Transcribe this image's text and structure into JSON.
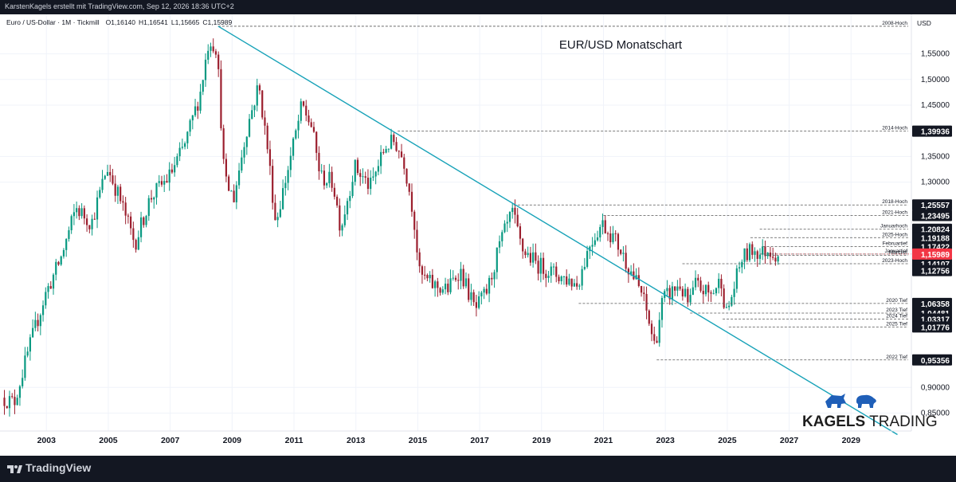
{
  "header": {
    "attribution": "KarstenKagels erstellt mit TradingView.com, Sep 12, 2026 18:36 UTC+2"
  },
  "footer": {
    "brand": "TradingView",
    "logo_icon": "tradingview-logo-icon"
  },
  "chart_data": {
    "type": "candlestick",
    "title": "EUR/USD Monatschart",
    "symbol_line": "Euro / US-Dollar · 1M · Tickmill",
    "ohlc_readout": {
      "O": "1,16140",
      "H": "1,16541",
      "L": "1,15665",
      "C": "1,15989"
    },
    "currency_label": "USD",
    "xlim": [
      2001.5,
      2030.95
    ],
    "ylim": [
      0.815,
      1.627
    ],
    "x_ticks": [
      "2003",
      "2005",
      "2007",
      "2009",
      "2011",
      "2013",
      "2015",
      "2017",
      "2019",
      "2021",
      "2023",
      "2025",
      "2027",
      "2029"
    ],
    "y_ticks": [
      "1,55000",
      "1,50000",
      "1,45000",
      "1,35000",
      "1,30000",
      "0,90000",
      "0,85000"
    ],
    "price_anchors": [
      [
        2001.6,
        0.88
      ],
      [
        2002.0,
        0.87
      ],
      [
        2002.5,
        0.98
      ],
      [
        2003.0,
        1.08
      ],
      [
        2003.5,
        1.15
      ],
      [
        2004.0,
        1.25
      ],
      [
        2004.5,
        1.22
      ],
      [
        2005.0,
        1.33
      ],
      [
        2005.4,
        1.27
      ],
      [
        2005.9,
        1.18
      ],
      [
        2006.4,
        1.27
      ],
      [
        2007.0,
        1.31
      ],
      [
        2007.5,
        1.37
      ],
      [
        2008.0,
        1.47
      ],
      [
        2008.3,
        1.58
      ],
      [
        2008.55,
        1.56
      ],
      [
        2008.8,
        1.3
      ],
      [
        2009.1,
        1.27
      ],
      [
        2009.5,
        1.4
      ],
      [
        2009.9,
        1.49
      ],
      [
        2010.2,
        1.36
      ],
      [
        2010.45,
        1.22
      ],
      [
        2010.9,
        1.34
      ],
      [
        2011.3,
        1.45
      ],
      [
        2011.6,
        1.41
      ],
      [
        2011.9,
        1.31
      ],
      [
        2012.3,
        1.3
      ],
      [
        2012.55,
        1.21
      ],
      [
        2013.0,
        1.33
      ],
      [
        2013.5,
        1.29
      ],
      [
        2014.0,
        1.37
      ],
      [
        2014.3,
        1.38
      ],
      [
        2014.6,
        1.34
      ],
      [
        2014.9,
        1.24
      ],
      [
        2015.1,
        1.12
      ],
      [
        2015.5,
        1.1
      ],
      [
        2016.0,
        1.09
      ],
      [
        2016.4,
        1.13
      ],
      [
        2016.9,
        1.05
      ],
      [
        2017.3,
        1.09
      ],
      [
        2017.7,
        1.18
      ],
      [
        2018.1,
        1.24
      ],
      [
        2018.4,
        1.17
      ],
      [
        2018.9,
        1.14
      ],
      [
        2019.5,
        1.12
      ],
      [
        2019.9,
        1.11
      ],
      [
        2020.2,
        1.1
      ],
      [
        2020.6,
        1.18
      ],
      [
        2021.0,
        1.22
      ],
      [
        2021.4,
        1.19
      ],
      [
        2021.9,
        1.13
      ],
      [
        2022.3,
        1.08
      ],
      [
        2022.7,
        0.98
      ],
      [
        2022.95,
        1.07
      ],
      [
        2023.5,
        1.1
      ],
      [
        2023.8,
        1.06
      ],
      [
        2024.0,
        1.1
      ],
      [
        2024.5,
        1.08
      ],
      [
        2024.85,
        1.11
      ],
      [
        2025.0,
        1.04
      ],
      [
        2025.2,
        1.08
      ],
      [
        2025.5,
        1.15
      ],
      [
        2025.9,
        1.17
      ],
      [
        2026.1,
        1.16
      ],
      [
        2026.4,
        1.17
      ],
      [
        2026.6,
        1.15989
      ]
    ],
    "trend_line": {
      "from": [
        2008.55,
        1.6038
      ],
      "to": [
        2030.5,
        0.808
      ],
      "color": "#17a2b8"
    },
    "levels": [
      {
        "label": "2008-Hoch",
        "value": 1.6038,
        "price_label": "",
        "x_start": 2008.55
      },
      {
        "label": "2014-Hoch",
        "value": 1.39936,
        "price_label": "1,39936",
        "x_start": 2014.35
      },
      {
        "label": "",
        "value": 1.25557,
        "price_label": "1,25557",
        "x_start": 0
      },
      {
        "label": "2018-Hoch",
        "value": 1.25557,
        "price_label": "",
        "x_start": 2018.1
      },
      {
        "label": "2021-Hoch",
        "value": 1.23495,
        "price_label": "1,23495",
        "x_start": 2021.0
      },
      {
        "label": "",
        "value": 1.20824,
        "price_label": "1,20824",
        "x_start": 0
      },
      {
        "label": "Januarhoch",
        "value": 1.20824,
        "price_label": "",
        "x_start": 2026.05
      },
      {
        "label": "2025-Hoch",
        "value": 1.19188,
        "price_label": "1,19188",
        "x_start": 2025.75
      },
      {
        "label": "",
        "value": 1.17422,
        "price_label": "1,17422",
        "x_start": 0
      },
      {
        "label": "Februartief",
        "value": 1.17422,
        "price_label": "",
        "x_start": 2026.15
      },
      {
        "label": "Januartief",
        "value": 1.15989,
        "price_label": "",
        "x_start": 2026.05
      },
      {
        "label": "",
        "value": 1.15751,
        "price_label": "1,15751",
        "x_start": 0
      },
      {
        "label": "Märztief",
        "value": 1.15751,
        "price_label": "",
        "x_start": 2026.2
      },
      {
        "label": "2023-Hoch",
        "value": 1.14107,
        "price_label": "1,14107",
        "x_start": 2023.55
      },
      {
        "label": "",
        "value": 1.12756,
        "price_label": "1,12756",
        "x_start": 0
      },
      {
        "label": "2020 Tief",
        "value": 1.06358,
        "price_label": "1,06358",
        "x_start": 2020.2
      },
      {
        "label": "",
        "value": 1.04481,
        "price_label": "1,04481",
        "x_start": 0
      },
      {
        "label": "2023 Tief",
        "value": 1.04481,
        "price_label": "",
        "x_start": 2023.8
      },
      {
        "label": "2024 Tief",
        "value": 1.03317,
        "price_label": "1,03317",
        "x_start": 2024.85
      },
      {
        "label": "2025 Tief",
        "value": 1.01776,
        "price_label": "1,01776",
        "x_start": 2025.05
      },
      {
        "label": "2022 Tief",
        "value": 0.95356,
        "price_label": "0,95356",
        "x_start": 2022.72
      }
    ],
    "current_price": {
      "value": 1.15989,
      "label": "1,15989",
      "color": "#f23645"
    },
    "colors": {
      "up": "#089981",
      "down": "#9c1f2e",
      "axis_text": "#131722",
      "level_line": "#555555"
    },
    "watermark": {
      "brand_bold": "KAGELS",
      "brand_light": " TRADING",
      "icons": [
        "bull-icon",
        "bear-icon"
      ],
      "icon_color": "#1f5fb8"
    }
  }
}
